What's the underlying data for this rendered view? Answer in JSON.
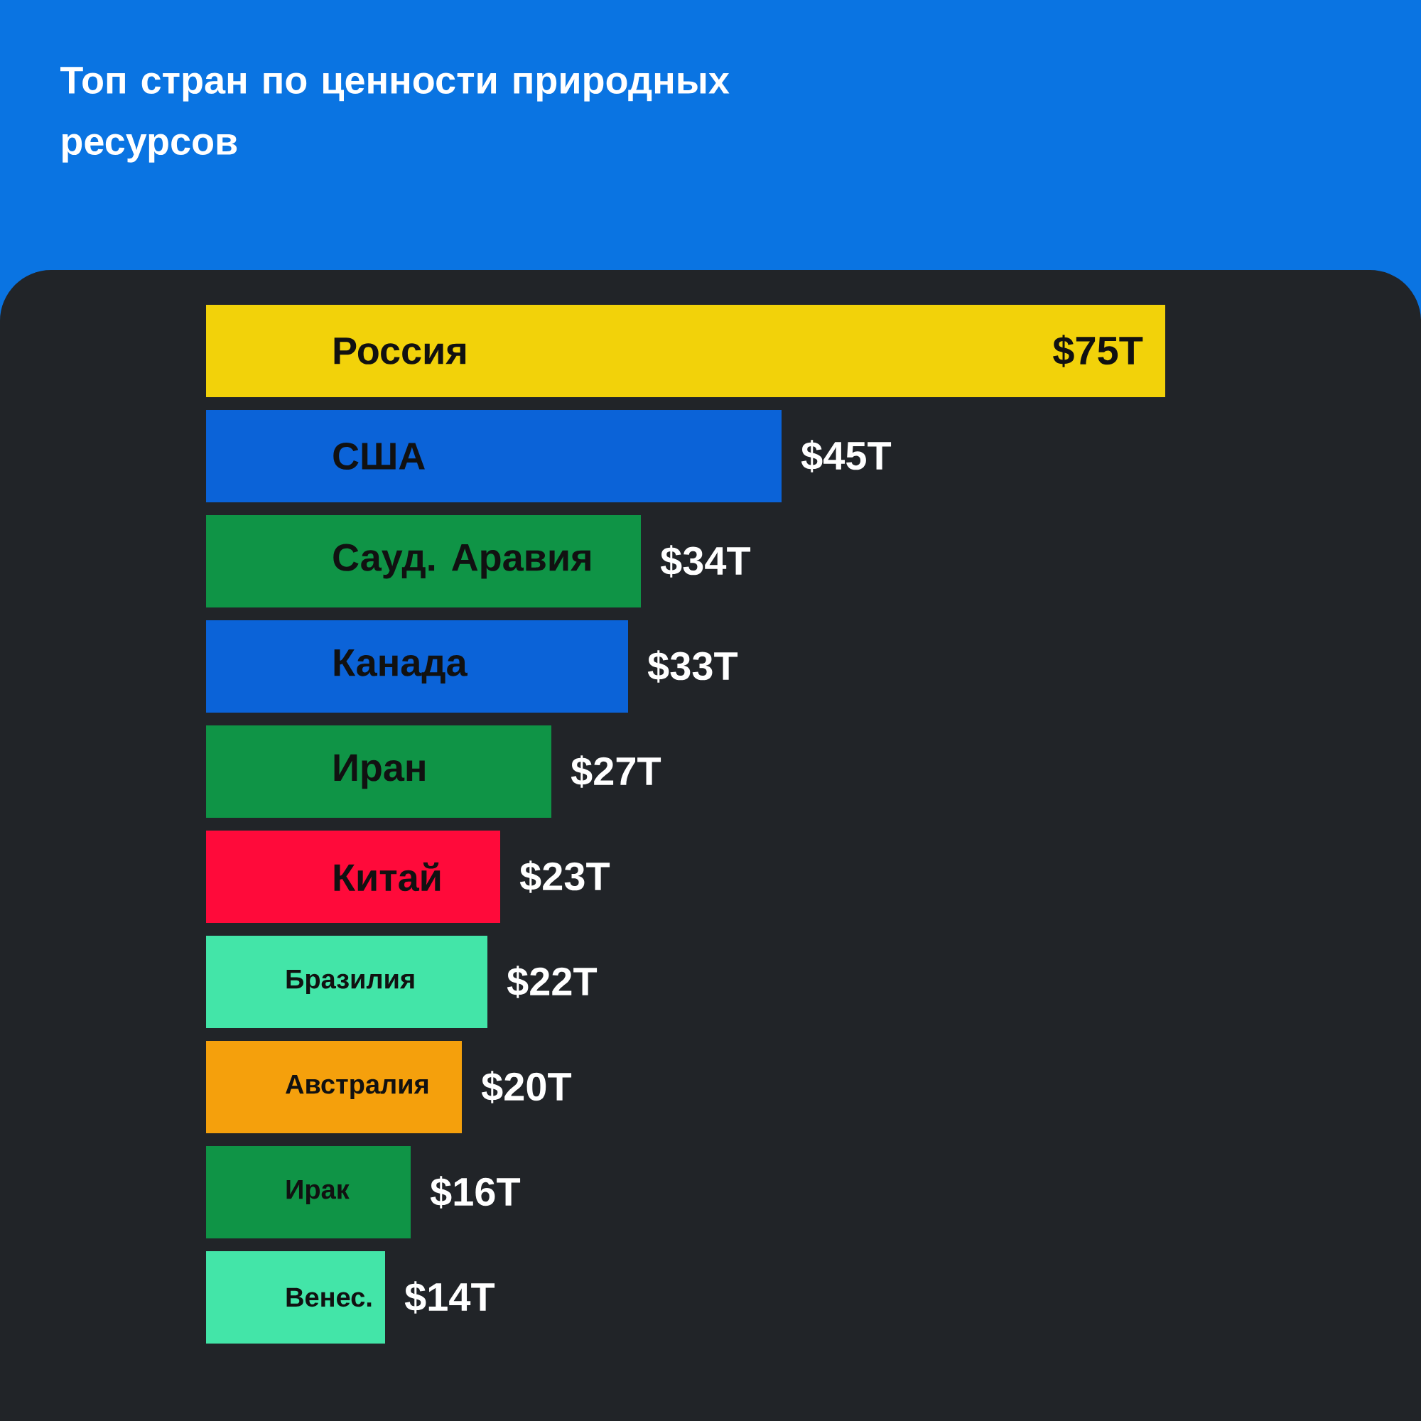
{
  "chart_data": {
    "type": "bar",
    "orientation": "horizontal",
    "title": "Топ стран по ценности природных ресурсов",
    "categories": [
      "Россия",
      "США",
      "Сауд. Аравия",
      "Канада",
      "Иран",
      "Китай",
      "Бразилия",
      "Австралия",
      "Ирак",
      "Венес."
    ],
    "values": [
      75,
      45,
      34,
      33,
      27,
      23,
      22,
      20,
      16,
      14
    ],
    "colors": [
      "#f2d20a",
      "#0b63d8",
      "#0f9446",
      "#0b63d8",
      "#0f9446",
      "#ff0a3a",
      "#43e5a8",
      "#f5a00c",
      "#0f9446",
      "#43e5a8"
    ],
    "value_labels": [
      "$75T",
      "$45T",
      "$34T",
      "$33T",
      "$27T",
      "$23T",
      "$22T",
      "$20T",
      "$16T",
      "$14T"
    ]
  }
}
